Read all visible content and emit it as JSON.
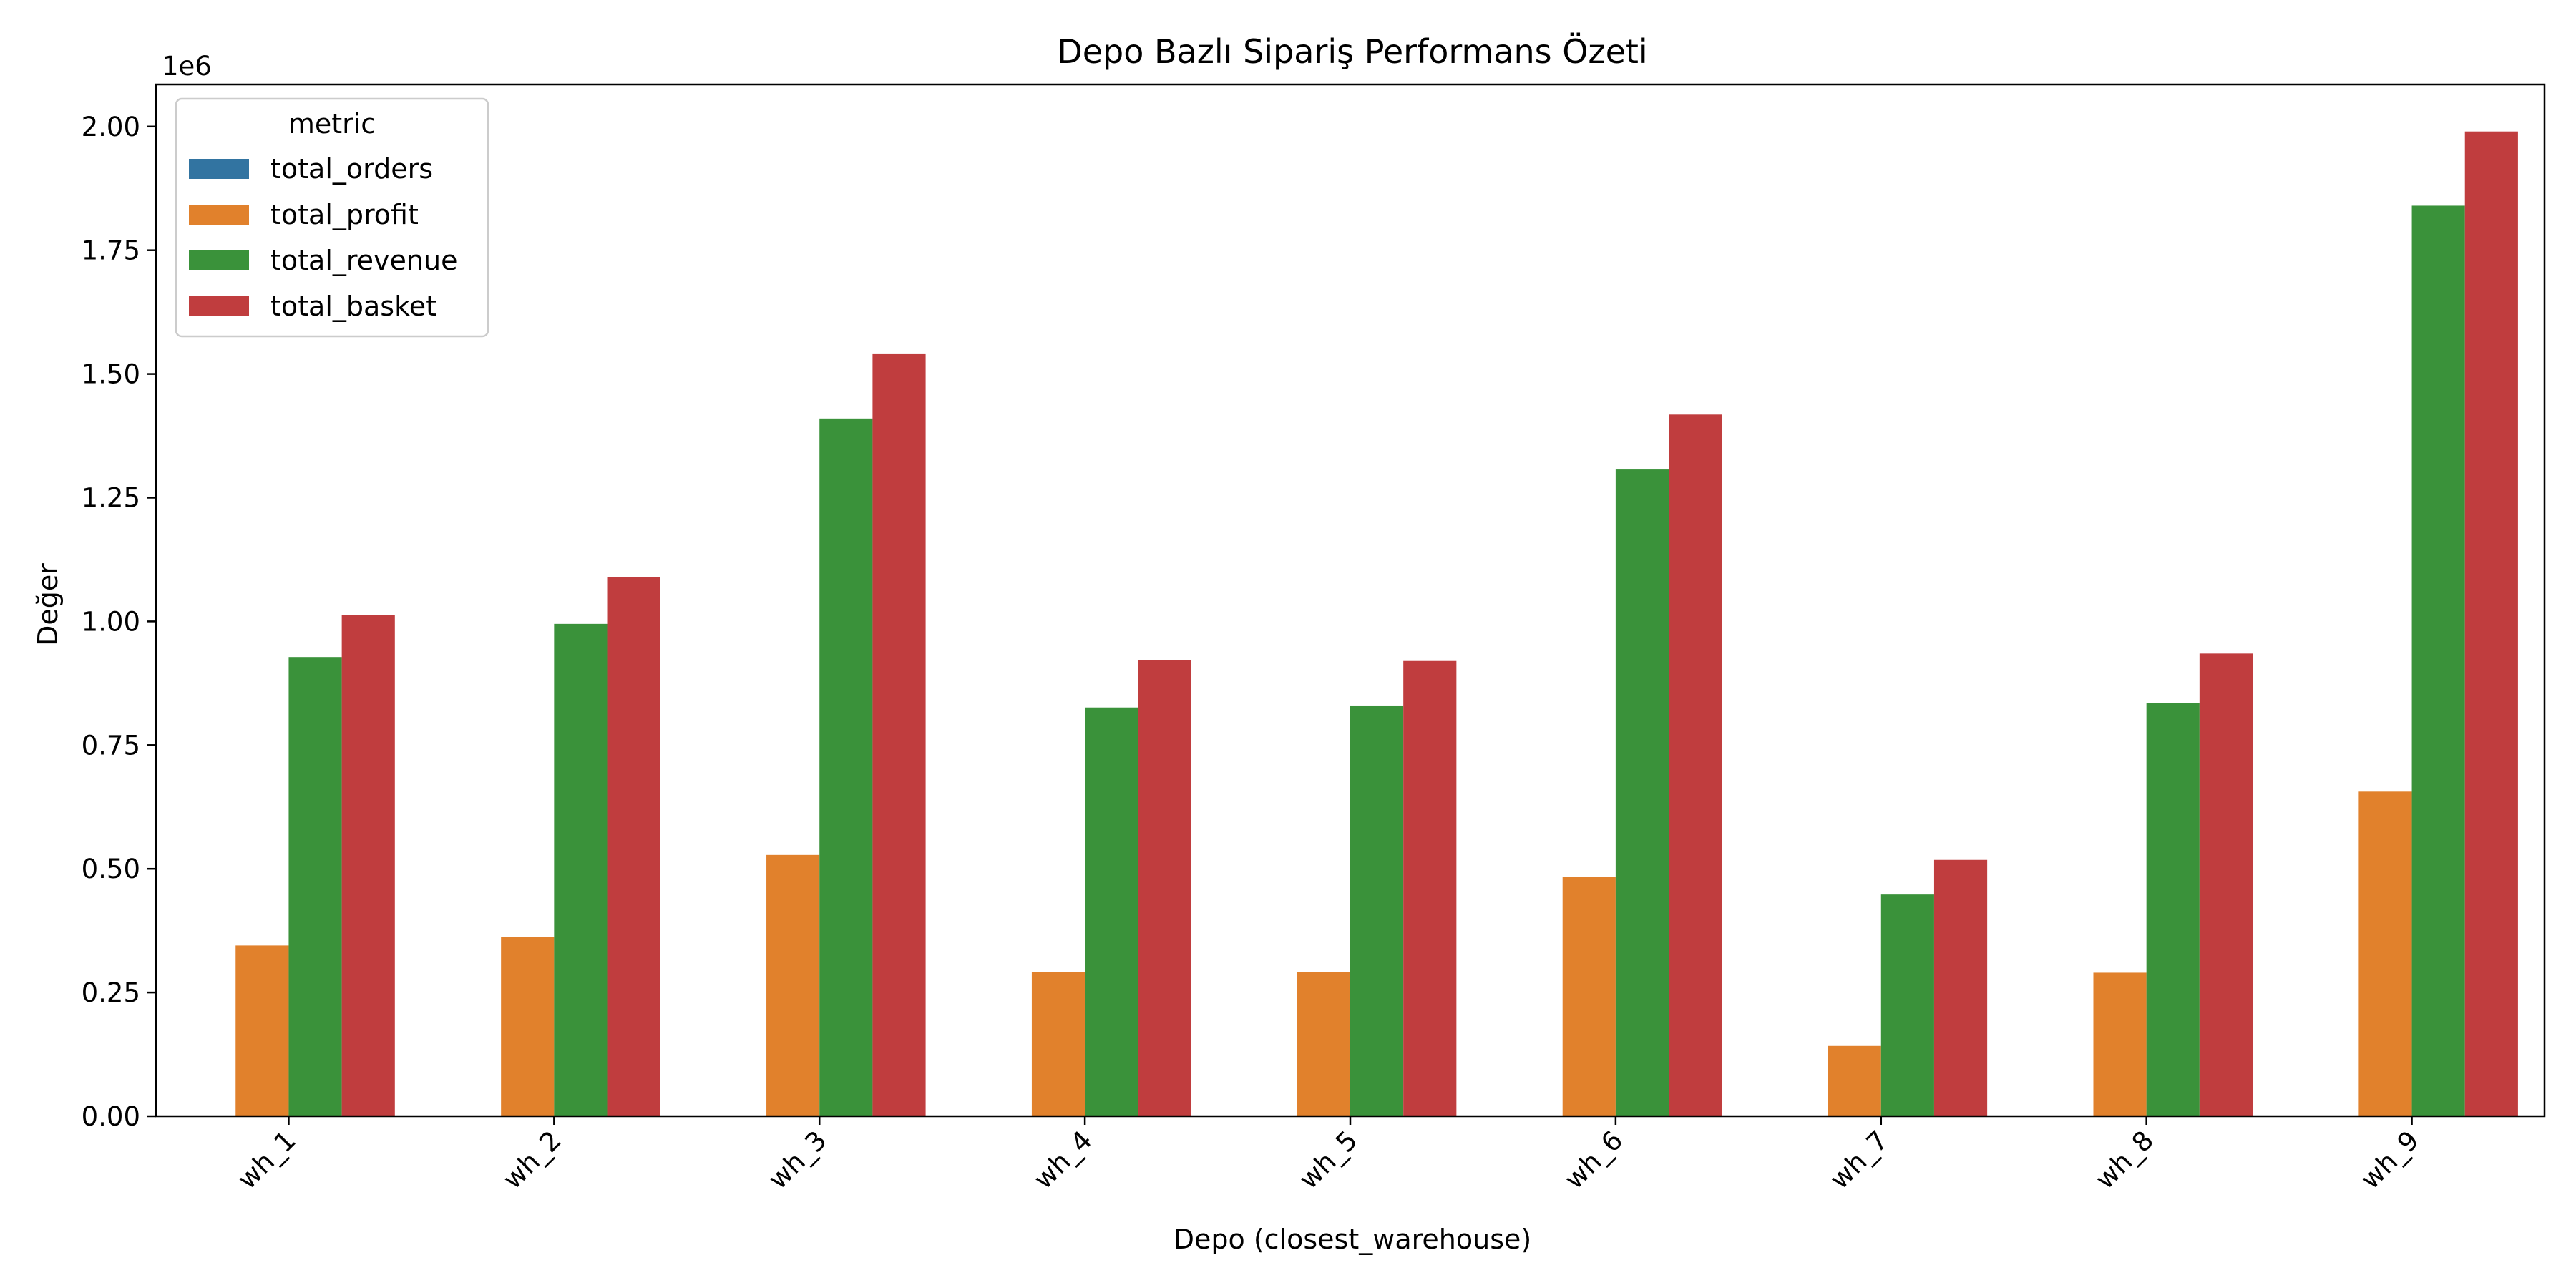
{
  "chart_data": {
    "type": "bar",
    "title": "Depo Bazlı Sipariş Performans Özeti",
    "xlabel": "Depo (closest_warehouse)",
    "ylabel": "Değer",
    "offset_text": "1e6",
    "y_scale_multiplier": 1000000,
    "ylim": [
      0,
      2.085
    ],
    "yticks": [
      0.0,
      0.25,
      0.5,
      0.75,
      1.0,
      1.25,
      1.5,
      1.75,
      2.0
    ],
    "ytick_labels": [
      "0.00",
      "0.25",
      "0.50",
      "0.75",
      "1.00",
      "1.25",
      "1.50",
      "1.75",
      "2.00"
    ],
    "categories": [
      "wh_1",
      "wh_2",
      "wh_3",
      "wh_4",
      "wh_5",
      "wh_6",
      "wh_7",
      "wh_8",
      "wh_9"
    ],
    "legend": {
      "title": "metric",
      "placement": "top-left"
    },
    "grid": false,
    "series": [
      {
        "name": "total_orders",
        "color": "#3274a1",
        "values": [
          0.0002,
          0.0002,
          0.0004,
          0.0002,
          0.0002,
          0.0004,
          0.0001,
          0.0002,
          0.0006
        ]
      },
      {
        "name": "total_profit",
        "color": "#e1812c",
        "values": [
          0.345,
          0.362,
          0.528,
          0.292,
          0.292,
          0.483,
          0.142,
          0.29,
          0.656
        ]
      },
      {
        "name": "total_revenue",
        "color": "#3a923a",
        "values": [
          0.928,
          0.995,
          1.41,
          0.826,
          0.83,
          1.307,
          0.448,
          0.835,
          1.84
        ]
      },
      {
        "name": "total_basket",
        "color": "#c03d3e",
        "values": [
          1.013,
          1.09,
          1.54,
          0.922,
          0.92,
          1.418,
          0.518,
          0.935,
          1.99
        ]
      }
    ]
  }
}
